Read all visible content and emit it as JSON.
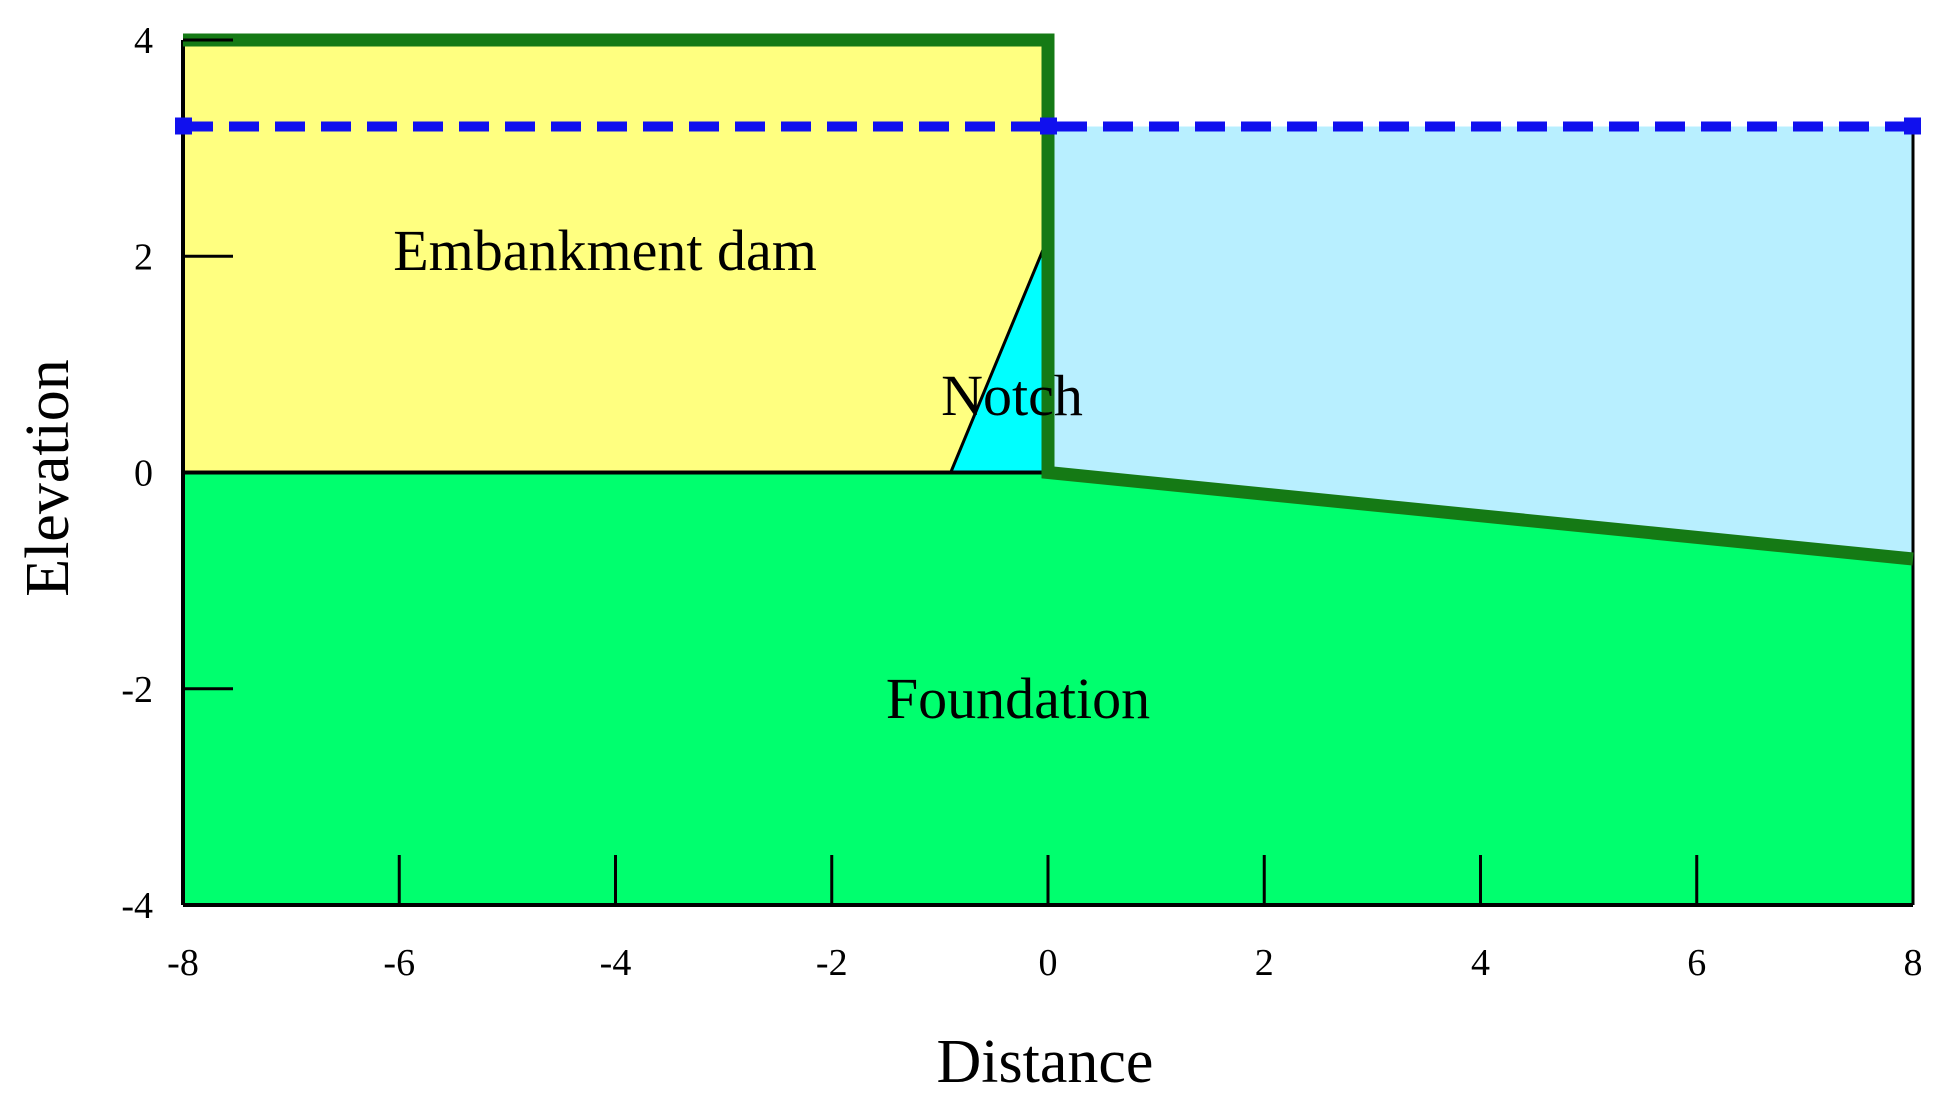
{
  "axes": {
    "x_title": "Distance",
    "y_title": "Elevation",
    "x_range": [
      -8,
      8
    ],
    "y_range": [
      -4,
      4
    ],
    "x_ticks": [
      "-8",
      "-6",
      "-4",
      "-2",
      "0",
      "2",
      "4",
      "6",
      "8"
    ],
    "y_ticks": [
      "4",
      "2",
      "0",
      "-2",
      "-4"
    ]
  },
  "regions": {
    "dam": "Embankment dam",
    "notch": "Notch",
    "foundation": "Foundation"
  },
  "colors": {
    "dam_fill": "#ffff80",
    "notch_fill": "#00ffff",
    "water_fill": "#b8efff",
    "foundation_fill": "#00ff6e",
    "boundary_line": "#157a15",
    "water_table": "#1010ee"
  },
  "chart_data": {
    "type": "diagram",
    "x_range": [
      -8,
      8
    ],
    "y_range": [
      -4,
      4
    ],
    "water_level": 3.2,
    "dam_polygon": [
      [
        -8,
        4
      ],
      [
        0,
        4
      ],
      [
        0,
        0
      ],
      [
        -8,
        0
      ]
    ],
    "notch_polygon": [
      [
        -0.9,
        0
      ],
      [
        -0.05,
        2.05
      ],
      [
        0,
        2.05
      ],
      [
        0,
        0
      ]
    ],
    "foundation_polygon": [
      [
        -8,
        0
      ],
      [
        0,
        0
      ],
      [
        8,
        -0.8
      ],
      [
        8,
        -4
      ],
      [
        -8,
        -4
      ]
    ],
    "water_polygon": [
      [
        0,
        3.2
      ],
      [
        8,
        3.2
      ],
      [
        8,
        -0.8
      ],
      [
        0,
        0
      ]
    ],
    "boundary_path": [
      [
        -8,
        4
      ],
      [
        0,
        4
      ],
      [
        0,
        0
      ],
      [
        8,
        -0.8
      ]
    ]
  }
}
